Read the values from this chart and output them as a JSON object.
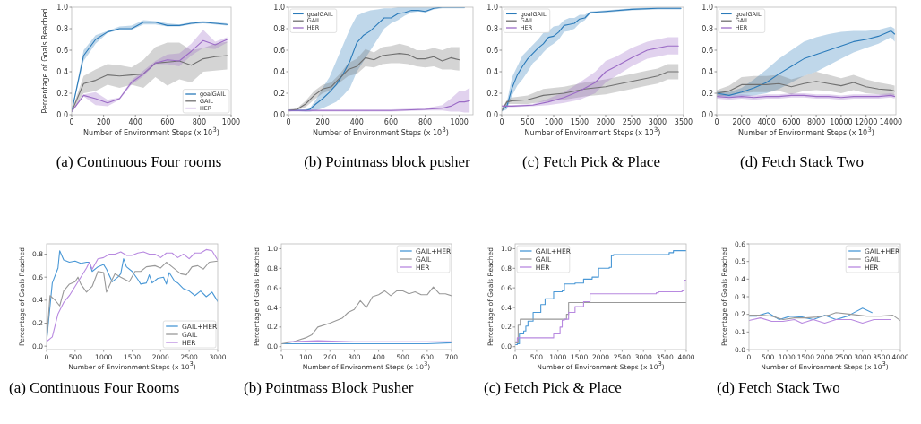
{
  "chart_data": [
    {
      "type": "line",
      "xlabel": "Number of Environment Steps (x 10$^{3}$)",
      "ylabel": "Percentage of Goals Reached",
      "xlim": [
        0,
        1000
      ],
      "ylim": [
        0,
        1
      ],
      "xticks": [
        0,
        200,
        400,
        600,
        800,
        1000
      ],
      "yticks": [
        {
          "value": 0,
          "label": "0.0"
        },
        {
          "value": 0.2,
          "label": "0.2"
        },
        {
          "value": 0.4,
          "label": "0.4"
        },
        {
          "value": 0.6,
          "label": "0.6"
        },
        {
          "value": 0.8,
          "label": "0.8"
        },
        {
          "value": 1,
          "label": "1.0"
        }
      ],
      "legend": "bottom right",
      "annotations": [
        "(a) Continuous Four rooms"
      ],
      "series": [
        {
          "name": "goalGAIL",
          "color": "#2b7bba",
          "x": [
            0,
            75,
            150,
            225,
            300,
            375,
            450,
            525,
            600,
            675,
            750,
            825,
            900,
            975
          ],
          "values": [
            0.03,
            0.55,
            0.7,
            0.77,
            0.8,
            0.8,
            0.86,
            0.86,
            0.83,
            0.83,
            0.85,
            0.86,
            0.85,
            0.84
          ],
          "lower": [
            0.02,
            0.5,
            0.66,
            0.76,
            0.79,
            0.79,
            0.84,
            0.84,
            0.82,
            0.82,
            0.84,
            0.85,
            0.84,
            0.83
          ],
          "upper": [
            0.04,
            0.6,
            0.74,
            0.78,
            0.82,
            0.83,
            0.88,
            0.87,
            0.85,
            0.84,
            0.86,
            0.87,
            0.86,
            0.85
          ]
        },
        {
          "name": "GAIL",
          "color": "#707070",
          "x": [
            0,
            75,
            150,
            225,
            300,
            375,
            450,
            525,
            600,
            675,
            750,
            825,
            900,
            975
          ],
          "values": [
            0.03,
            0.29,
            0.32,
            0.37,
            0.36,
            0.37,
            0.38,
            0.48,
            0.49,
            0.5,
            0.46,
            0.52,
            0.54,
            0.55
          ],
          "lower": [
            0.02,
            0.2,
            0.22,
            0.28,
            0.25,
            0.28,
            0.25,
            0.35,
            0.27,
            0.33,
            0.3,
            0.4,
            0.41,
            0.42
          ],
          "upper": [
            0.04,
            0.36,
            0.42,
            0.47,
            0.46,
            0.44,
            0.51,
            0.63,
            0.67,
            0.67,
            0.6,
            0.62,
            0.66,
            0.68
          ]
        },
        {
          "name": "HER",
          "color": "#9b6bc6",
          "x": [
            0,
            75,
            150,
            225,
            300,
            375,
            450,
            525,
            600,
            675,
            750,
            825,
            900,
            975
          ],
          "values": [
            0.03,
            0.18,
            0.15,
            0.11,
            0.15,
            0.3,
            0.38,
            0.48,
            0.51,
            0.5,
            0.59,
            0.69,
            0.65,
            0.7
          ],
          "lower": [
            0.02,
            0.17,
            0.09,
            0.08,
            0.14,
            0.28,
            0.36,
            0.47,
            0.47,
            0.45,
            0.55,
            0.62,
            0.61,
            0.67
          ],
          "upper": [
            0.04,
            0.19,
            0.21,
            0.14,
            0.16,
            0.32,
            0.41,
            0.5,
            0.56,
            0.57,
            0.66,
            0.79,
            0.68,
            0.72
          ]
        }
      ]
    },
    {
      "type": "line",
      "xlabel": "Number of Environment Steps (x 10$^{3}$)",
      "xlim": [
        0,
        1080
      ],
      "ylim": [
        0,
        1
      ],
      "xticks": [
        0,
        200,
        400,
        600,
        800,
        1000
      ],
      "yticks": [
        {
          "value": 0,
          "label": "0.0"
        },
        {
          "value": 0.2,
          "label": "0.2"
        },
        {
          "value": 0.4,
          "label": "0.4"
        },
        {
          "value": 0.6,
          "label": "0.6"
        },
        {
          "value": 0.8,
          "label": "0.8"
        },
        {
          "value": 1,
          "label": "1.0"
        }
      ],
      "legend": "top left",
      "annotations": [
        "(b) Pointmass block pusher"
      ],
      "series": [
        {
          "name": "goalGAIL",
          "color": "#2b7bba",
          "x": [
            0,
            100,
            125,
            160,
            200,
            240,
            280,
            320,
            360,
            400,
            440,
            480,
            520,
            560,
            600,
            640,
            680,
            720,
            760,
            800,
            850,
            900,
            950,
            1000,
            1030
          ],
          "values": [
            0.04,
            0.04,
            0.05,
            0.1,
            0.15,
            0.21,
            0.28,
            0.38,
            0.5,
            0.67,
            0.74,
            0.78,
            0.84,
            0.9,
            0.9,
            0.94,
            0.95,
            0.97,
            0.97,
            0.96,
            0.99,
            1.0,
            1.0,
            1.0,
            1.0
          ],
          "lower": [
            0.04,
            0.03,
            0.03,
            0.04,
            0.06,
            0.09,
            0.12,
            0.18,
            0.25,
            0.4,
            0.5,
            0.6,
            0.7,
            0.8,
            0.85,
            0.88,
            0.92,
            0.95,
            0.96,
            0.95,
            0.98,
            0.99,
            0.99,
            0.99,
            0.99
          ],
          "upper": [
            0.05,
            0.05,
            0.06,
            0.14,
            0.25,
            0.35,
            0.5,
            0.65,
            0.8,
            0.92,
            0.95,
            0.97,
            0.98,
            0.99,
            0.99,
            1,
            1,
            1,
            1,
            1,
            1,
            1,
            1,
            1,
            1
          ]
        },
        {
          "name": "GAIL",
          "color": "#707070",
          "x": [
            0,
            50,
            100,
            150,
            200,
            250,
            300,
            350,
            400,
            450,
            500,
            550,
            600,
            650,
            700,
            750,
            800,
            850,
            900,
            950,
            1000
          ],
          "values": [
            0.04,
            0.05,
            0.1,
            0.18,
            0.24,
            0.26,
            0.34,
            0.42,
            0.45,
            0.53,
            0.51,
            0.55,
            0.56,
            0.57,
            0.56,
            0.52,
            0.52,
            0.54,
            0.5,
            0.53,
            0.51
          ],
          "lower": [
            0.03,
            0.04,
            0.07,
            0.14,
            0.2,
            0.23,
            0.3,
            0.36,
            0.38,
            0.45,
            0.44,
            0.47,
            0.48,
            0.48,
            0.47,
            0.45,
            0.44,
            0.45,
            0.42,
            0.42,
            0.41
          ],
          "upper": [
            0.05,
            0.06,
            0.13,
            0.22,
            0.28,
            0.3,
            0.38,
            0.48,
            0.52,
            0.61,
            0.58,
            0.63,
            0.64,
            0.66,
            0.64,
            0.6,
            0.6,
            0.62,
            0.6,
            0.63,
            0.63
          ]
        },
        {
          "name": "HER",
          "color": "#9b6bc6",
          "x": [
            0,
            200,
            400,
            600,
            800,
            900,
            950,
            1000,
            1030,
            1060
          ],
          "values": [
            0.04,
            0.04,
            0.04,
            0.04,
            0.05,
            0.06,
            0.08,
            0.12,
            0.12,
            0.13
          ],
          "lower": [
            0.03,
            0.03,
            0.03,
            0.03,
            0.04,
            0.04,
            0.03,
            0.03,
            0.02,
            0.02
          ],
          "upper": [
            0.05,
            0.05,
            0.05,
            0.05,
            0.06,
            0.09,
            0.15,
            0.22,
            0.22,
            0.25
          ]
        }
      ]
    },
    {
      "type": "line",
      "xlabel": "Number of Environment Steps (x 10$^{3}$)",
      "xlim": [
        0,
        3500
      ],
      "ylim": [
        0,
        1
      ],
      "xticks": [
        0,
        500,
        1000,
        1500,
        2000,
        2500,
        3000,
        3500
      ],
      "yticks": [
        {
          "value": 0,
          "label": "0.0"
        },
        {
          "value": 0.2,
          "label": "0.2"
        },
        {
          "value": 0.4,
          "label": "0.4"
        },
        {
          "value": 0.6,
          "label": "0.6"
        },
        {
          "value": 0.8,
          "label": "0.8"
        },
        {
          "value": 1,
          "label": "1.0"
        }
      ],
      "legend": "top left",
      "annotations": [
        "(c) Fetch Pick & Place"
      ],
      "series": [
        {
          "name": "goalGAIL",
          "color": "#2b7bba",
          "x": [
            0,
            100,
            200,
            300,
            400,
            500,
            600,
            700,
            800,
            900,
            1000,
            1100,
            1200,
            1300,
            1400,
            1500,
            1600,
            1700,
            2000,
            2500,
            3000,
            3450
          ],
          "values": [
            0.04,
            0.08,
            0.25,
            0.37,
            0.45,
            0.52,
            0.57,
            0.62,
            0.66,
            0.72,
            0.73,
            0.77,
            0.83,
            0.84,
            0.85,
            0.89,
            0.9,
            0.95,
            0.96,
            0.98,
            0.99,
            0.99
          ],
          "lower": [
            0.03,
            0.05,
            0.18,
            0.27,
            0.33,
            0.4,
            0.48,
            0.52,
            0.58,
            0.63,
            0.66,
            0.7,
            0.77,
            0.78,
            0.8,
            0.85,
            0.88,
            0.94,
            0.95,
            0.97,
            0.98,
            0.98
          ],
          "upper": [
            0.05,
            0.12,
            0.35,
            0.45,
            0.55,
            0.6,
            0.65,
            0.7,
            0.76,
            0.78,
            0.82,
            0.83,
            0.88,
            0.9,
            0.9,
            0.93,
            0.93,
            0.96,
            0.97,
            0.99,
            1,
            1
          ]
        },
        {
          "name": "GAIL",
          "color": "#707070",
          "x": [
            0,
            100,
            200,
            500,
            800,
            1200,
            1600,
            2000,
            2500,
            2800,
            3000,
            3200,
            3400
          ],
          "values": [
            0.04,
            0.12,
            0.13,
            0.14,
            0.18,
            0.2,
            0.24,
            0.26,
            0.31,
            0.34,
            0.36,
            0.4,
            0.4
          ],
          "lower": [
            0.03,
            0.1,
            0.1,
            0.1,
            0.12,
            0.14,
            0.17,
            0.19,
            0.24,
            0.27,
            0.29,
            0.33,
            0.33
          ],
          "upper": [
            0.05,
            0.14,
            0.16,
            0.18,
            0.24,
            0.26,
            0.3,
            0.33,
            0.38,
            0.41,
            0.43,
            0.47,
            0.47
          ]
        },
        {
          "name": "HER",
          "color": "#9b6bc6",
          "x": [
            0,
            200,
            600,
            900,
            1200,
            1500,
            1800,
            2000,
            2200,
            2500,
            2800,
            3000,
            3200,
            3400
          ],
          "values": [
            0.08,
            0.08,
            0.09,
            0.12,
            0.16,
            0.22,
            0.3,
            0.4,
            0.45,
            0.53,
            0.6,
            0.62,
            0.64,
            0.64
          ],
          "lower": [
            0.07,
            0.07,
            0.08,
            0.09,
            0.11,
            0.14,
            0.2,
            0.3,
            0.36,
            0.45,
            0.52,
            0.54,
            0.56,
            0.56
          ],
          "upper": [
            0.09,
            0.09,
            0.1,
            0.15,
            0.21,
            0.3,
            0.4,
            0.5,
            0.54,
            0.62,
            0.68,
            0.7,
            0.72,
            0.72
          ]
        }
      ]
    },
    {
      "type": "line",
      "xlabel": "Number of Environment Steps (x 10$^{3}$)",
      "xlim": [
        0,
        14400
      ],
      "ylim": [
        0,
        1
      ],
      "xticks": [
        0,
        2000,
        4000,
        6000,
        8000,
        10000,
        12000,
        14000
      ],
      "yticks": [
        {
          "value": 0,
          "label": "0.0"
        },
        {
          "value": 0.2,
          "label": "0.2"
        },
        {
          "value": 0.4,
          "label": "0.4"
        },
        {
          "value": 0.6,
          "label": "0.6"
        },
        {
          "value": 0.8,
          "label": "0.8"
        },
        {
          "value": 1,
          "label": "1.0"
        }
      ],
      "legend": "top left",
      "annotations": [
        "(d) Fetch Stack Two"
      ],
      "series": [
        {
          "name": "goalGAIL",
          "color": "#2b7bba",
          "x": [
            0,
            1000,
            2000,
            3000,
            4000,
            5000,
            6000,
            7000,
            8000,
            9000,
            10000,
            11000,
            12000,
            13000,
            14000,
            14300
          ],
          "values": [
            0.2,
            0.18,
            0.21,
            0.25,
            0.3,
            0.38,
            0.45,
            0.52,
            0.56,
            0.6,
            0.64,
            0.68,
            0.7,
            0.73,
            0.78,
            0.75
          ],
          "lower": [
            0.18,
            0.16,
            0.17,
            0.18,
            0.2,
            0.24,
            0.3,
            0.36,
            0.4,
            0.46,
            0.52,
            0.58,
            0.62,
            0.66,
            0.72,
            0.68
          ],
          "upper": [
            0.22,
            0.21,
            0.25,
            0.33,
            0.42,
            0.52,
            0.6,
            0.68,
            0.72,
            0.75,
            0.77,
            0.78,
            0.78,
            0.79,
            0.82,
            0.8
          ]
        },
        {
          "name": "GAIL",
          "color": "#707070",
          "x": [
            0,
            1000,
            2000,
            3000,
            4000,
            5000,
            6000,
            7000,
            8000,
            9000,
            10000,
            11000,
            12000,
            13000,
            14000,
            14300
          ],
          "values": [
            0.2,
            0.22,
            0.28,
            0.28,
            0.28,
            0.29,
            0.26,
            0.29,
            0.31,
            0.29,
            0.27,
            0.3,
            0.26,
            0.24,
            0.23,
            0.22
          ],
          "lower": [
            0.17,
            0.18,
            0.2,
            0.21,
            0.21,
            0.22,
            0.19,
            0.22,
            0.23,
            0.22,
            0.2,
            0.23,
            0.2,
            0.19,
            0.18,
            0.18
          ],
          "upper": [
            0.23,
            0.27,
            0.35,
            0.36,
            0.36,
            0.37,
            0.33,
            0.36,
            0.4,
            0.37,
            0.34,
            0.37,
            0.33,
            0.3,
            0.28,
            0.27
          ]
        },
        {
          "name": "HER",
          "color": "#9b6bc6",
          "x": [
            0,
            1000,
            2000,
            3000,
            4000,
            5000,
            6000,
            7000,
            8000,
            9000,
            10000,
            11000,
            12000,
            13000,
            14000,
            14300
          ],
          "values": [
            0.17,
            0.16,
            0.17,
            0.16,
            0.17,
            0.17,
            0.18,
            0.18,
            0.17,
            0.17,
            0.16,
            0.17,
            0.17,
            0.17,
            0.18,
            0.17
          ],
          "lower": [
            0.15,
            0.14,
            0.15,
            0.14,
            0.15,
            0.15,
            0.16,
            0.16,
            0.15,
            0.15,
            0.14,
            0.15,
            0.15,
            0.15,
            0.16,
            0.15
          ],
          "upper": [
            0.19,
            0.18,
            0.19,
            0.18,
            0.19,
            0.19,
            0.2,
            0.2,
            0.19,
            0.19,
            0.18,
            0.19,
            0.19,
            0.19,
            0.2,
            0.19
          ]
        }
      ]
    },
    {
      "type": "line",
      "xlabel": "Number of Environment Steps (x 10$^{3}$)",
      "ylabel": "Percentage of Goals Reached",
      "xlim": [
        0,
        3000
      ],
      "ylim": [
        -0.03,
        0.89
      ],
      "xticks": [
        0,
        500,
        1000,
        1500,
        2000,
        2500,
        3000
      ],
      "yticks": [
        {
          "value": 0,
          "label": "0.0"
        },
        {
          "value": 0.2,
          "label": "0.2"
        },
        {
          "value": 0.4,
          "label": "0.4"
        },
        {
          "value": 0.6,
          "label": "0.6"
        },
        {
          "value": 0.8,
          "label": "0.8"
        }
      ],
      "legend": "bottom right",
      "annotations": [
        "(a) Continuous Four Rooms"
      ],
      "series": [
        {
          "name": "GAIL+HER",
          "color": "#4a98d6",
          "x": [
            0,
            100,
            200,
            230,
            300,
            400,
            500,
            600,
            700,
            750,
            800,
            900,
            1000,
            1050,
            1150,
            1250,
            1300,
            1350,
            1400,
            1500,
            1600,
            1650,
            1750,
            1800,
            1850,
            1950,
            2050,
            2100,
            2150,
            2250,
            2300,
            2400,
            2500,
            2600,
            2700,
            2800,
            2900,
            3000
          ],
          "values": [
            0.04,
            0.55,
            0.68,
            0.83,
            0.75,
            0.73,
            0.74,
            0.72,
            0.73,
            0.73,
            0.65,
            0.69,
            0.71,
            0.67,
            0.56,
            0.6,
            0.63,
            0.76,
            0.69,
            0.65,
            0.58,
            0.54,
            0.55,
            0.62,
            0.55,
            0.59,
            0.6,
            0.54,
            0.64,
            0.56,
            0.55,
            0.5,
            0.48,
            0.44,
            0.48,
            0.43,
            0.47,
            0.39
          ]
        },
        {
          "name": "GAIL",
          "color": "#999999",
          "x": [
            0,
            60,
            150,
            230,
            300,
            400,
            500,
            550,
            600,
            700,
            800,
            900,
            1000,
            1050,
            1150,
            1200,
            1300,
            1450,
            1550,
            1650,
            1750,
            1900,
            2000,
            2100,
            2200,
            2350,
            2450,
            2550,
            2650,
            2750,
            2850,
            3000
          ],
          "values": [
            0.04,
            0.44,
            0.4,
            0.35,
            0.48,
            0.54,
            0.56,
            0.6,
            0.54,
            0.47,
            0.52,
            0.65,
            0.64,
            0.47,
            0.58,
            0.63,
            0.6,
            0.56,
            0.65,
            0.65,
            0.69,
            0.7,
            0.68,
            0.73,
            0.69,
            0.63,
            0.62,
            0.69,
            0.7,
            0.67,
            0.73,
            0.74
          ]
        },
        {
          "name": "HER",
          "color": "#b889e0",
          "x": [
            0,
            100,
            200,
            300,
            400,
            500,
            600,
            700,
            750,
            800,
            900,
            1000,
            1100,
            1200,
            1300,
            1400,
            1500,
            1600,
            1700,
            1800,
            1900,
            2000,
            2100,
            2200,
            2300,
            2400,
            2500,
            2600,
            2700,
            2800,
            2900,
            3000
          ],
          "values": [
            0.04,
            0.08,
            0.28,
            0.38,
            0.44,
            0.52,
            0.6,
            0.68,
            0.73,
            0.67,
            0.76,
            0.77,
            0.8,
            0.8,
            0.82,
            0.79,
            0.79,
            0.81,
            0.82,
            0.8,
            0.8,
            0.77,
            0.81,
            0.81,
            0.77,
            0.8,
            0.76,
            0.81,
            0.81,
            0.84,
            0.83,
            0.75
          ]
        }
      ]
    },
    {
      "type": "line",
      "xlabel": "Number of Environment Steps (x 10$^{3}$)",
      "ylabel": "Percentage of Goals Reached",
      "xlim": [
        0,
        700
      ],
      "ylim": [
        -0.03,
        1.05
      ],
      "xticks": [
        0,
        100,
        200,
        300,
        400,
        500,
        600,
        700
      ],
      "yticks": [
        {
          "value": 0,
          "label": "0.0"
        },
        {
          "value": 0.2,
          "label": "0.2"
        },
        {
          "value": 0.4,
          "label": "0.4"
        },
        {
          "value": 0.6,
          "label": "0.6"
        },
        {
          "value": 0.8,
          "label": "0.8"
        },
        {
          "value": 1,
          "label": "1.0"
        }
      ],
      "legend": "top right",
      "annotations": [
        "(b) Pointmass Block Pusher"
      ],
      "series": [
        {
          "name": "GAIL+HER",
          "color": "#4a98d6",
          "x": [
            0,
            100,
            200,
            300,
            400,
            500,
            600,
            700
          ],
          "values": [
            0.03,
            0.03,
            0.03,
            0.03,
            0.03,
            0.03,
            0.03,
            0.04
          ]
        },
        {
          "name": "GAIL",
          "color": "#999999",
          "x": [
            0,
            50,
            75,
            100,
            125,
            150,
            200,
            250,
            275,
            300,
            325,
            350,
            375,
            400,
            425,
            450,
            475,
            500,
            525,
            550,
            575,
            600,
            625,
            650,
            675,
            700
          ],
          "values": [
            0.03,
            0.05,
            0.07,
            0.09,
            0.12,
            0.2,
            0.24,
            0.29,
            0.35,
            0.38,
            0.47,
            0.4,
            0.51,
            0.53,
            0.57,
            0.52,
            0.57,
            0.57,
            0.54,
            0.56,
            0.53,
            0.53,
            0.61,
            0.54,
            0.54,
            0.52
          ]
        },
        {
          "name": "HER",
          "color": "#b889e0",
          "x": [
            25,
            150,
            300,
            500,
            700
          ],
          "values": [
            0.05,
            0.06,
            0.05,
            0.05,
            0.05
          ]
        }
      ]
    },
    {
      "type": "step",
      "xlabel": "Number of Environment Steps (x 10$^{3}$)",
      "ylabel": "Percentage of Goals Reached",
      "xlim": [
        0,
        4000
      ],
      "ylim": [
        -0.03,
        1.05
      ],
      "xticks": [
        0,
        500,
        1000,
        1500,
        2000,
        2500,
        3000,
        3500,
        4000
      ],
      "yticks": [
        {
          "value": 0,
          "label": "0.0"
        },
        {
          "value": 0.2,
          "label": "0.2"
        },
        {
          "value": 0.4,
          "label": "0.4"
        },
        {
          "value": 0.6,
          "label": "0.6"
        },
        {
          "value": 0.8,
          "label": "0.8"
        },
        {
          "value": 1,
          "label": "1.0"
        }
      ],
      "legend": "top left",
      "annotations": [
        "(c) Fetch Pick & Place"
      ],
      "series": [
        {
          "name": "GAIL+HER",
          "color": "#4a98d6",
          "x": [
            0,
            50,
            100,
            200,
            250,
            300,
            420,
            600,
            700,
            900,
            1100,
            1150,
            1400,
            1600,
            1800,
            1950,
            2200,
            2250,
            2300,
            3600,
            3700,
            4000
          ],
          "values": [
            0.02,
            0.03,
            0.13,
            0.16,
            0.21,
            0.26,
            0.35,
            0.43,
            0.49,
            0.56,
            0.57,
            0.64,
            0.65,
            0.69,
            0.71,
            0.8,
            0.81,
            0.93,
            0.94,
            0.96,
            0.98,
            0.98
          ]
        },
        {
          "name": "GAIL",
          "color": "#999999",
          "x": [
            0,
            70,
            120,
            1200,
            1250,
            4000
          ],
          "values": [
            0.04,
            0.22,
            0.28,
            0.33,
            0.45,
            0.45
          ]
        },
        {
          "name": "HER",
          "color": "#b889e0",
          "x": [
            0,
            50,
            850,
            900,
            1000,
            1050,
            1100,
            1150,
            1250,
            1400,
            1600,
            1750,
            3300,
            3350,
            3900,
            3950,
            4000
          ],
          "values": [
            0.05,
            0.09,
            0.09,
            0.13,
            0.13,
            0.2,
            0.27,
            0.28,
            0.35,
            0.41,
            0.46,
            0.54,
            0.55,
            0.56,
            0.57,
            0.68,
            0.68
          ]
        }
      ]
    },
    {
      "type": "line",
      "xlabel": "Number of Environment Steps (x 10$^{3}$)",
      "ylabel": "Percentage of Goals Reached",
      "xlim": [
        0,
        4000
      ],
      "ylim": [
        0,
        0.6
      ],
      "xticks": [
        0,
        500,
        1000,
        1500,
        2000,
        2500,
        3000,
        3500,
        4000
      ],
      "yticks": [
        {
          "value": 0,
          "label": "0.0"
        },
        {
          "value": 0.1,
          "label": "0.1"
        },
        {
          "value": 0.2,
          "label": "0.2"
        },
        {
          "value": 0.3,
          "label": "0.3"
        },
        {
          "value": 0.4,
          "label": "0.4"
        },
        {
          "value": 0.5,
          "label": "0.5"
        },
        {
          "value": 0.6,
          "label": "0.6"
        }
      ],
      "legend": "top right",
      "annotations": [
        "(d) Fetch Stack Two"
      ],
      "series": [
        {
          "name": "GAIL+HER",
          "color": "#4a98d6",
          "x": [
            0,
            200,
            500,
            800,
            1100,
            1400,
            1700,
            2000,
            2300,
            2600,
            3000,
            3250
          ],
          "values": [
            0.19,
            0.19,
            0.21,
            0.17,
            0.19,
            0.185,
            0.17,
            0.195,
            0.17,
            0.19,
            0.235,
            0.21
          ]
        },
        {
          "name": "GAIL",
          "color": "#999999",
          "x": [
            0,
            300,
            600,
            900,
            1200,
            1500,
            1800,
            2100,
            2300,
            2700,
            3100,
            3500,
            3800,
            4000
          ],
          "values": [
            0.195,
            0.195,
            0.19,
            0.17,
            0.18,
            0.18,
            0.185,
            0.195,
            0.21,
            0.2,
            0.19,
            0.19,
            0.195,
            0.165
          ]
        },
        {
          "name": "HER",
          "color": "#b889e0",
          "x": [
            0,
            300,
            600,
            900,
            1200,
            1400,
            1700,
            2000,
            2300,
            2700,
            3000,
            3300,
            3750
          ],
          "values": [
            0.165,
            0.18,
            0.16,
            0.16,
            0.17,
            0.15,
            0.17,
            0.15,
            0.17,
            0.17,
            0.15,
            0.17,
            0.17
          ]
        }
      ]
    }
  ]
}
